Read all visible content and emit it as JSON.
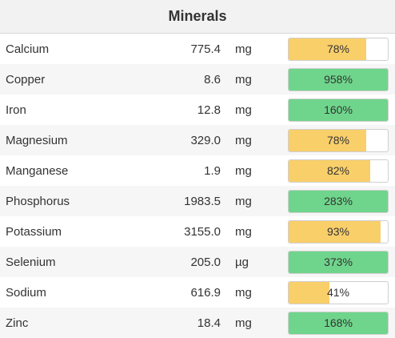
{
  "title": "Minerals",
  "colors": {
    "under": "#f9cf6a",
    "over": "#6fd58c"
  },
  "rows": [
    {
      "name": "Calcium",
      "amount": "775.4",
      "unit": "mg",
      "pct_label": "78%",
      "pct": 78
    },
    {
      "name": "Copper",
      "amount": "8.6",
      "unit": "mg",
      "pct_label": "958%",
      "pct": 958
    },
    {
      "name": "Iron",
      "amount": "12.8",
      "unit": "mg",
      "pct_label": "160%",
      "pct": 160
    },
    {
      "name": "Magnesium",
      "amount": "329.0",
      "unit": "mg",
      "pct_label": "78%",
      "pct": 78
    },
    {
      "name": "Manganese",
      "amount": "1.9",
      "unit": "mg",
      "pct_label": "82%",
      "pct": 82
    },
    {
      "name": "Phosphorus",
      "amount": "1983.5",
      "unit": "mg",
      "pct_label": "283%",
      "pct": 283
    },
    {
      "name": "Potassium",
      "amount": "3155.0",
      "unit": "mg",
      "pct_label": "93%",
      "pct": 93
    },
    {
      "name": "Selenium",
      "amount": "205.0",
      "unit": "µg",
      "pct_label": "373%",
      "pct": 373
    },
    {
      "name": "Sodium",
      "amount": "616.9",
      "unit": "mg",
      "pct_label": "41%",
      "pct": 41
    },
    {
      "name": "Zinc",
      "amount": "18.4",
      "unit": "mg",
      "pct_label": "168%",
      "pct": 168
    }
  ]
}
